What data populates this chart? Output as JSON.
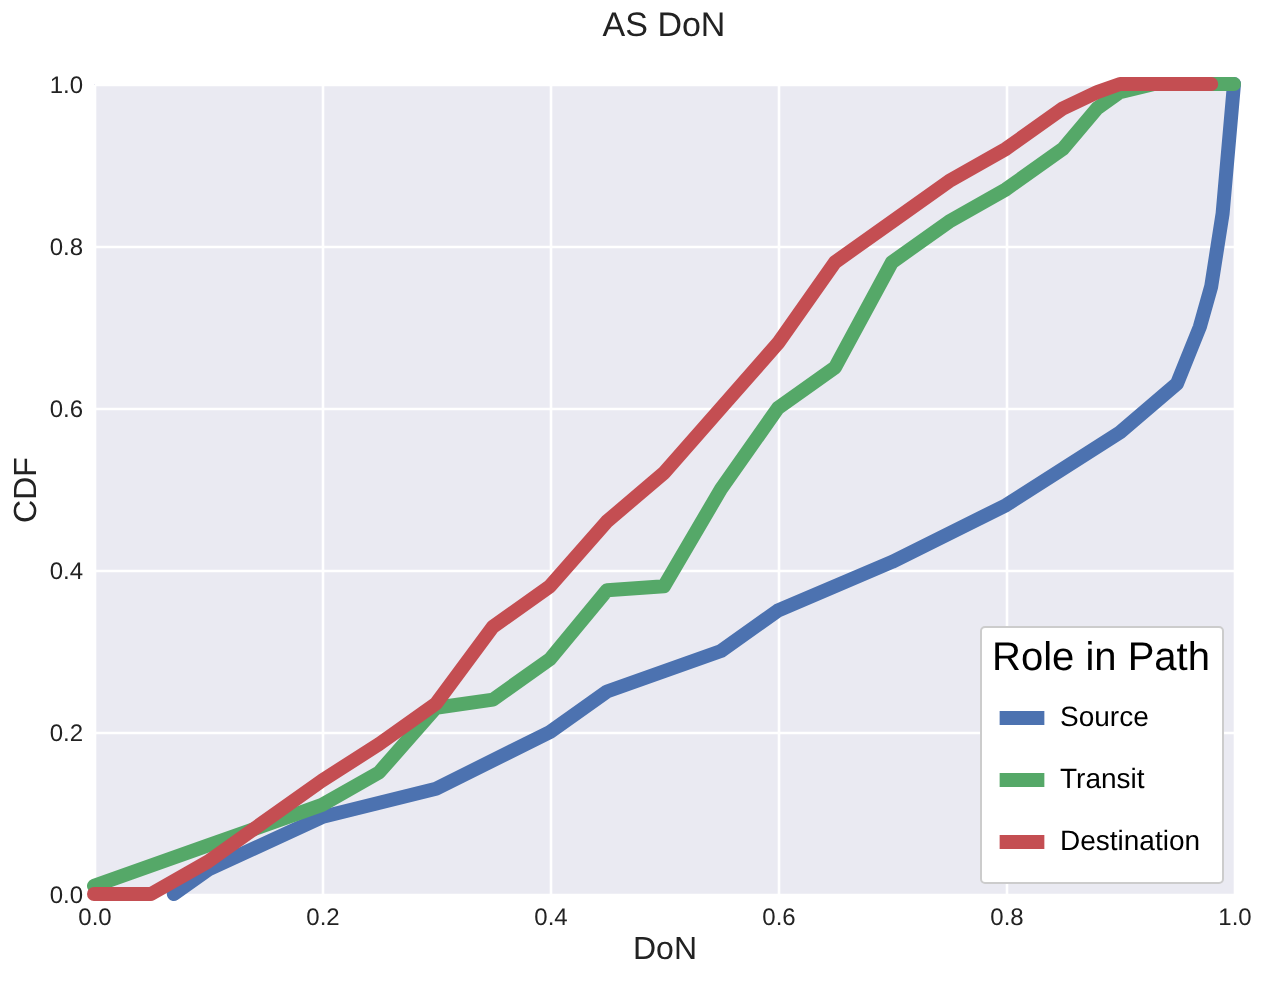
{
  "chart_data": {
    "type": "line",
    "title": "AS DoN",
    "xlabel": "DoN",
    "ylabel": "CDF",
    "legend_title": "Role in Path",
    "legend": "bottom right",
    "grid": true,
    "line_style": "solid",
    "xlim": [
      0,
      1
    ],
    "ylim": [
      0,
      1
    ],
    "xticks": [
      {
        "value": 0,
        "label": "0.0"
      },
      0.2,
      0.4,
      0.6,
      0.8,
      {
        "value": 1,
        "label": "1.0"
      }
    ],
    "yticks": [
      {
        "value": 0,
        "label": "0.0"
      },
      0.2,
      0.4,
      0.6,
      0.8,
      {
        "value": 1,
        "label": "1.0"
      }
    ],
    "series": [
      {
        "name": "Source",
        "color": "#4c72b0",
        "x": [
          0.07,
          0.1,
          0.2,
          0.3,
          0.4,
          0.45,
          0.5,
          0.55,
          0.6,
          0.7,
          0.8,
          0.9,
          0.95,
          0.97,
          0.98,
          0.99,
          1.0
        ],
        "values": [
          0,
          0.03,
          0.095,
          0.13,
          0.2,
          0.25,
          0.275,
          0.3,
          0.35,
          0.41,
          0.48,
          0.57,
          0.63,
          0.7,
          0.75,
          0.84,
          1.0
        ]
      },
      {
        "name": "Transit",
        "color": "#55a868",
        "x": [
          0,
          0.1,
          0.2,
          0.25,
          0.3,
          0.35,
          0.4,
          0.45,
          0.5,
          0.55,
          0.6,
          0.65,
          0.7,
          0.75,
          0.8,
          0.85,
          0.88,
          0.9,
          0.93,
          1.0
        ],
        "values": [
          0.01,
          0.06,
          0.11,
          0.15,
          0.23,
          0.24,
          0.29,
          0.375,
          0.38,
          0.5,
          0.6,
          0.65,
          0.78,
          0.83,
          0.87,
          0.92,
          0.97,
          0.99,
          1.0,
          1.0
        ]
      },
      {
        "name": "Destination",
        "color": "#c44e52",
        "x": [
          0,
          0.05,
          0.1,
          0.2,
          0.25,
          0.3,
          0.35,
          0.4,
          0.45,
          0.5,
          0.55,
          0.6,
          0.65,
          0.7,
          0.75,
          0.8,
          0.85,
          0.88,
          0.9,
          0.98
        ],
        "values": [
          0,
          0.0,
          0.04,
          0.14,
          0.185,
          0.235,
          0.33,
          0.38,
          0.46,
          0.52,
          0.6,
          0.68,
          0.78,
          0.83,
          0.88,
          0.92,
          0.97,
          0.99,
          1.0,
          1.0
        ]
      }
    ]
  }
}
